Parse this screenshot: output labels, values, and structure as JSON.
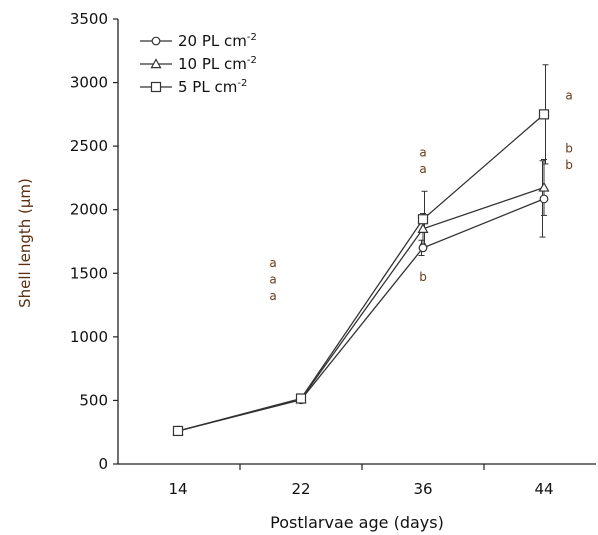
{
  "chart_data": {
    "type": "line",
    "xlabel": "Postlarvae age (days)",
    "ylabel": "Shell length (µm)",
    "categories": [
      "14",
      "22",
      "36",
      "44"
    ],
    "ylim": [
      0,
      3500
    ],
    "yticks": [
      0,
      500,
      1000,
      1500,
      2000,
      2500,
      3000,
      3500
    ],
    "grid": false,
    "legend_position": "top-left",
    "series": [
      {
        "name": "20 PL cm",
        "sup": "-2",
        "marker": "circle",
        "values": [
          260,
          505,
          1700,
          2085
        ],
        "errors": [
          0,
          25,
          60,
          300
        ]
      },
      {
        "name": "10 PL cm",
        "sup": "-2",
        "marker": "triangle",
        "values": [
          260,
          510,
          1850,
          2175
        ],
        "errors": [
          0,
          25,
          120,
          220
        ]
      },
      {
        "name": " 5 PL cm",
        "sup": "-2",
        "marker": "square",
        "values": [
          260,
          515,
          1925,
          2750
        ],
        "errors": [
          0,
          30,
          220,
          390
        ]
      }
    ],
    "annotations": [
      {
        "text": "a",
        "x": "22",
        "y": 1580
      },
      {
        "text": "a",
        "x": "22",
        "y": 1450
      },
      {
        "text": "a",
        "x": "22",
        "y": 1320
      },
      {
        "text": "a",
        "x": "36",
        "y": 2450
      },
      {
        "text": "a",
        "x": "36",
        "y": 2320
      },
      {
        "text": "b",
        "x": "36",
        "y": 1470
      },
      {
        "text": "a",
        "x": "44",
        "y": 2900
      },
      {
        "text": "b",
        "x": "44",
        "y": 2480
      },
      {
        "text": "b",
        "x": "44",
        "y": 2350
      }
    ]
  }
}
